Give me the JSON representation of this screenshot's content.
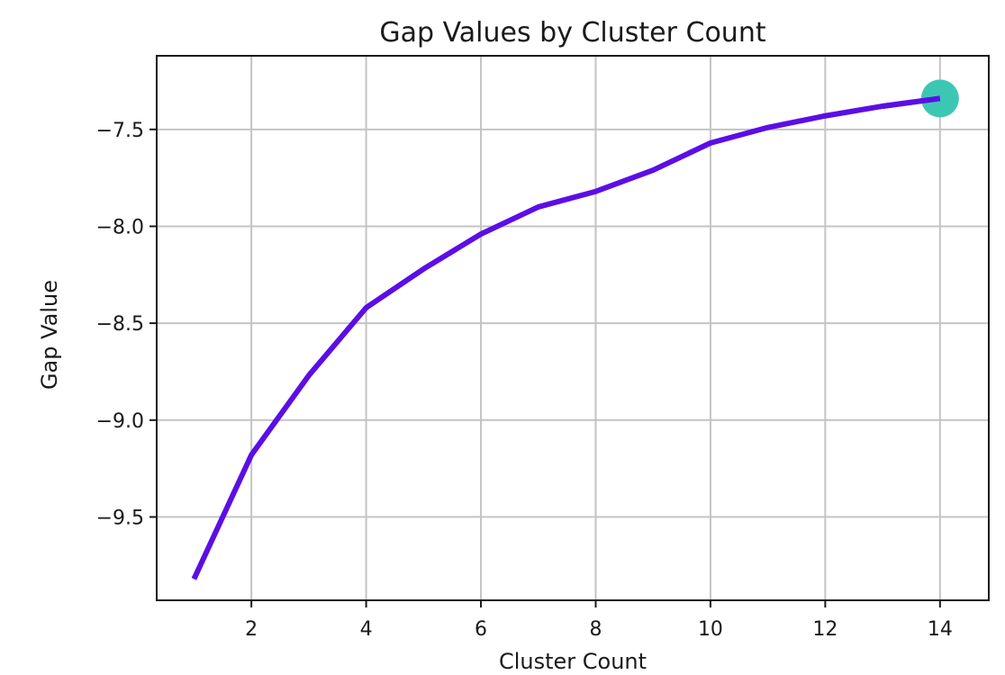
{
  "chart_data": {
    "type": "line",
    "title": "Gap Values by Cluster Count",
    "xlabel": "Cluster Count",
    "ylabel": "Gap Value",
    "xlim": [
      0.35,
      14.85
    ],
    "ylim": [
      -9.93,
      -7.12
    ],
    "x_ticks": [
      2,
      4,
      6,
      8,
      10,
      12,
      14
    ],
    "x_tick_labels": [
      "2",
      "4",
      "6",
      "8",
      "10",
      "12",
      "14"
    ],
    "y_ticks": [
      -9.5,
      -9.0,
      -8.5,
      -8.0,
      -7.5
    ],
    "y_tick_labels": [
      "−9.5",
      "−9.0",
      "−8.5",
      "−8.0",
      "−7.5"
    ],
    "grid": true,
    "series": [
      {
        "x": [
          1,
          2,
          3,
          4,
          5,
          6,
          7,
          8,
          9,
          10,
          11,
          12,
          13,
          14
        ],
        "y": [
          -9.82,
          -9.18,
          -8.77,
          -8.42,
          -8.22,
          -8.04,
          -7.9,
          -7.82,
          -7.71,
          -7.57,
          -7.49,
          -7.43,
          -7.38,
          -7.34
        ],
        "color": "#5b0ee6"
      }
    ],
    "highlight_point": {
      "x": 14,
      "y": -7.34,
      "color": "#3cc7b5"
    }
  }
}
